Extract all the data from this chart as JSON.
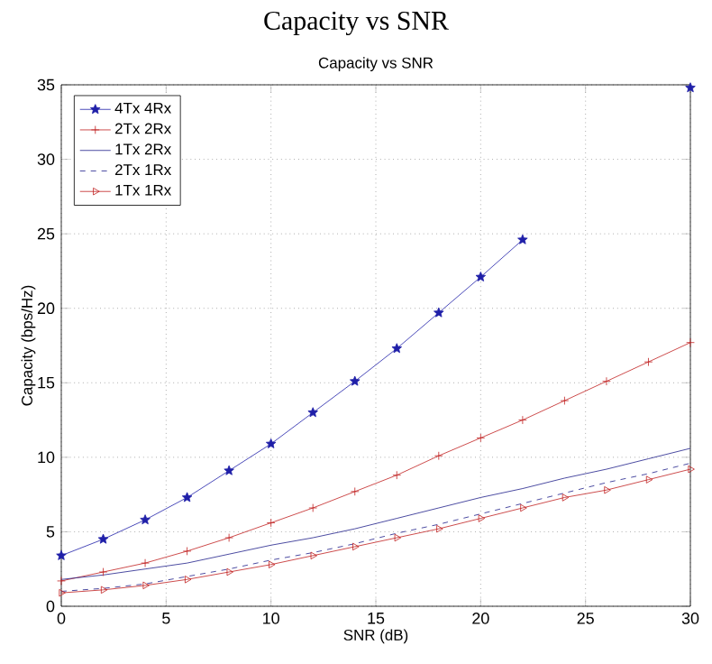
{
  "chart_data": {
    "type": "line",
    "title": "Capacity vs SNR",
    "subtitle": "Capacity vs SNR",
    "xlabel": "SNR (dB)",
    "ylabel": "Capacity (bps/Hz)",
    "x": [
      0,
      2,
      4,
      6,
      8,
      10,
      12,
      14,
      16,
      18,
      20,
      22,
      24,
      26,
      28,
      30
    ],
    "xlim": [
      0,
      30
    ],
    "ylim": [
      0,
      35
    ],
    "xticks": [
      0,
      5,
      10,
      15,
      20,
      25,
      30
    ],
    "yticks": [
      0,
      5,
      10,
      15,
      20,
      25,
      30,
      35
    ],
    "grid": true,
    "legend": "top left",
    "series": [
      {
        "name": "4Tx 4Rx",
        "color": "#1f1fa8",
        "marker": "star",
        "line_style": "solid",
        "values": [
          3.4,
          4.5,
          5.8,
          7.3,
          9.1,
          10.9,
          13.0,
          15.1,
          17.3,
          19.7,
          22.1,
          24.6,
          null,
          null,
          null,
          34.8
        ]
      },
      {
        "name": "2Tx 2Rx",
        "color": "#c02020",
        "marker": "cross",
        "line_style": "solid",
        "values": [
          1.7,
          2.3,
          2.9,
          3.7,
          4.6,
          5.6,
          6.6,
          7.7,
          8.8,
          10.1,
          11.3,
          12.5,
          13.8,
          15.1,
          16.4,
          17.7
        ]
      },
      {
        "name": "1Tx 2Rx",
        "color": "#20208a",
        "marker": "none",
        "line_style": "solid",
        "values": [
          1.8,
          2.1,
          2.5,
          2.9,
          3.5,
          4.1,
          4.6,
          5.2,
          5.9,
          6.6,
          7.3,
          7.9,
          8.6,
          9.2,
          9.9,
          10.6
        ]
      },
      {
        "name": "2Tx 1Rx",
        "color": "#20208a",
        "marker": "none",
        "line_style": "dashed",
        "values": [
          1.0,
          1.2,
          1.5,
          2.0,
          2.5,
          3.1,
          3.6,
          4.2,
          4.9,
          5.5,
          6.2,
          6.9,
          7.6,
          8.3,
          8.9,
          9.6
        ]
      },
      {
        "name": "1Tx 1Rx",
        "color": "#c02020",
        "marker": "triangle",
        "line_style": "solid",
        "values": [
          0.9,
          1.1,
          1.4,
          1.8,
          2.3,
          2.8,
          3.4,
          4.0,
          4.6,
          5.2,
          5.9,
          6.6,
          7.3,
          7.8,
          8.5,
          9.2
        ]
      }
    ]
  }
}
